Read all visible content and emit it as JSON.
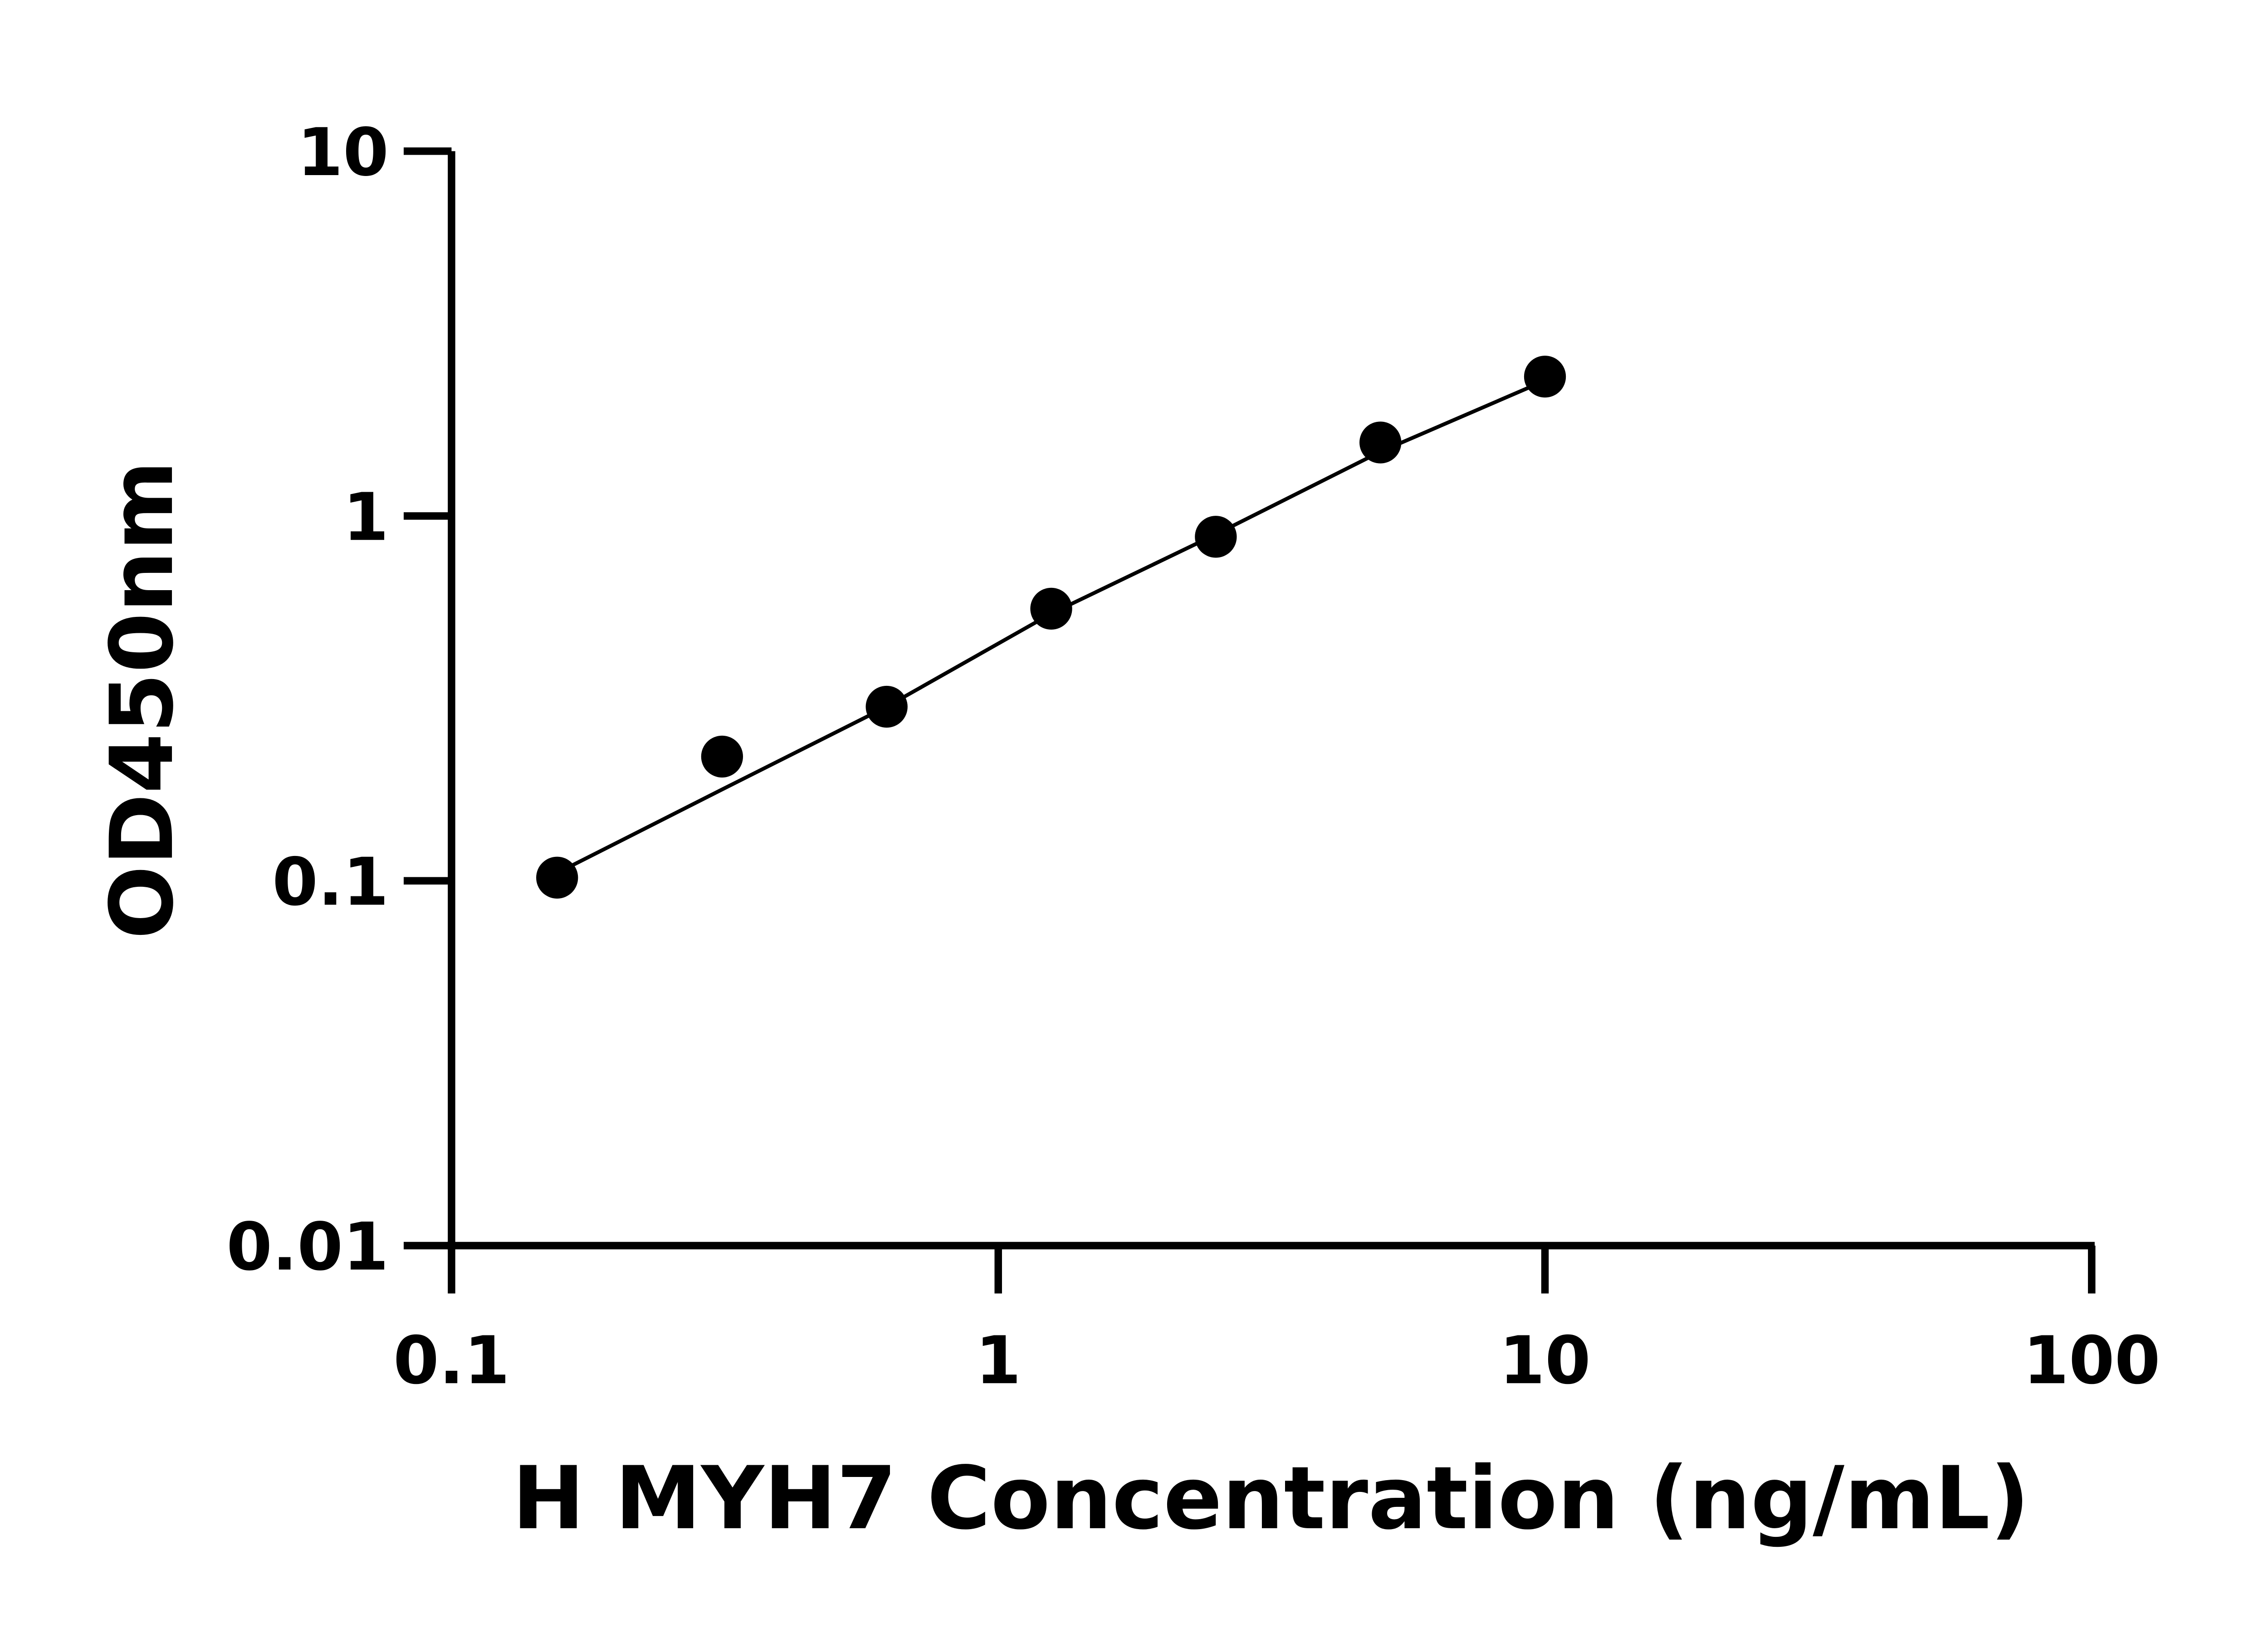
{
  "chart_data": {
    "type": "scatter",
    "title": "",
    "xlabel": "H MYH7 Concentration (ng/mL)",
    "ylabel": "OD450nm",
    "x_scale": "log",
    "y_scale": "log",
    "xlim": [
      0.1,
      100
    ],
    "ylim": [
      0.01,
      10
    ],
    "x_ticks": [
      "0.1",
      "1",
      "10",
      "100"
    ],
    "y_ticks": [
      "0.01",
      "0.1",
      "1",
      "10"
    ],
    "grid": false,
    "legend": "none",
    "colors": {
      "points": "#000000",
      "line": "#000000",
      "axes": "#000000"
    },
    "points": {
      "x": [
        0.156,
        0.3125,
        0.625,
        1.25,
        2.5,
        5,
        10
      ],
      "y": [
        0.102,
        0.219,
        0.3,
        0.557,
        0.877,
        1.59,
        2.41
      ]
    },
    "fit": {
      "x": [
        0.156,
        0.3125,
        0.625,
        1.25,
        2.5,
        5,
        10
      ],
      "y": [
        0.105,
        0.178,
        0.3,
        0.54,
        0.89,
        1.5,
        2.35
      ]
    }
  }
}
